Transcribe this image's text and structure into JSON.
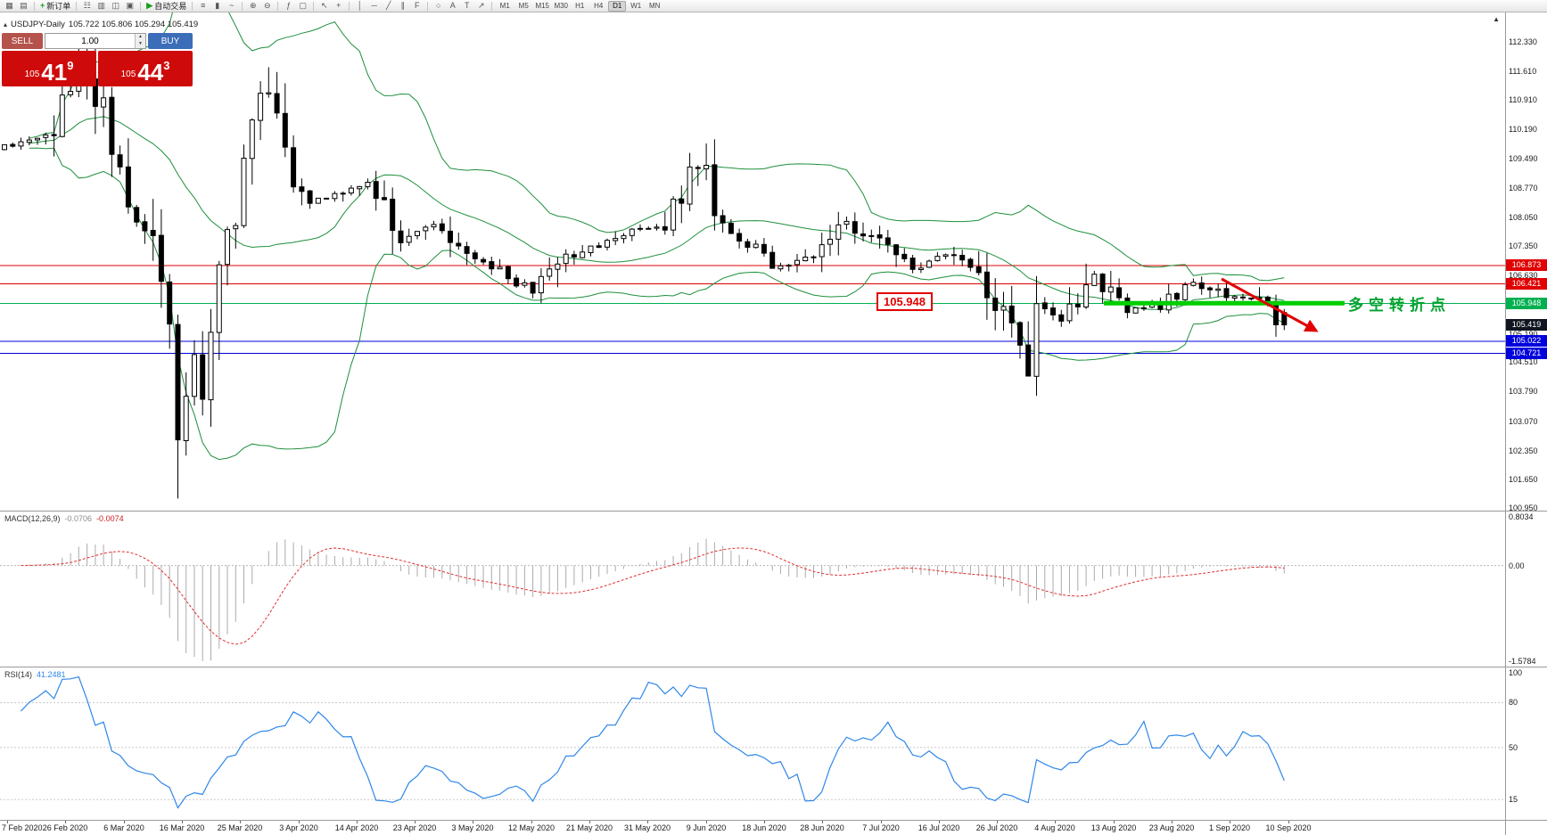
{
  "window": {
    "band_green": "#1e8f3c",
    "object_green": "#00ce00",
    "arrow_red": "#e00000",
    "histogram_gray": "#ababab",
    "macd_signal_red": "#e03030",
    "rsi_blue": "#2f87e8",
    "candle_up_fill": "#ffffff",
    "candle_down_fill": "#000000"
  },
  "toolbar": {
    "icon_groups": [
      {
        "items": [
          {
            "name": "new-chart",
            "glyph": "▦"
          },
          {
            "name": "profiles",
            "glyph": "▤"
          }
        ]
      },
      {
        "button": {
          "name": "new-order",
          "label": "新订单",
          "icon_glyph": "+",
          "icon_color": "#18a018",
          "icon_name": "plus-icon"
        }
      },
      {
        "items": [
          {
            "name": "market-watch",
            "glyph": "☷"
          },
          {
            "name": "data-window",
            "glyph": "▥"
          },
          {
            "name": "navigator",
            "glyph": "◫"
          },
          {
            "name": "terminal",
            "glyph": "▣"
          }
        ]
      },
      {
        "button": {
          "name": "auto-trading",
          "label": "自动交易",
          "icon_glyph": "▶",
          "icon_color": "#18a018",
          "icon_name": "play-icon"
        }
      },
      {
        "items": [
          {
            "name": "bar-chart-mode",
            "glyph": "≡"
          },
          {
            "name": "candlestick-mode",
            "glyph": "▮"
          },
          {
            "name": "line-chart-mode",
            "glyph": "~"
          }
        ]
      },
      {
        "items": [
          {
            "name": "zoom-in",
            "glyph": "⊕"
          },
          {
            "name": "zoom-out",
            "glyph": "⊖"
          }
        ]
      },
      {
        "items": [
          {
            "name": "indicators",
            "glyph": "ƒ"
          },
          {
            "name": "tile-windows",
            "glyph": "▢"
          }
        ]
      },
      {
        "items": [
          {
            "name": "cursor",
            "glyph": "↖"
          },
          {
            "name": "crosshair",
            "glyph": "+"
          }
        ]
      },
      {
        "items": [
          {
            "name": "vertical-line",
            "glyph": "│"
          },
          {
            "name": "horizontal-line",
            "glyph": "─"
          },
          {
            "name": "trendline",
            "glyph": "╱"
          },
          {
            "name": "equidistant-channel",
            "glyph": "∥"
          },
          {
            "name": "fibonacci",
            "glyph": "F"
          }
        ]
      },
      {
        "items": [
          {
            "name": "shapes",
            "glyph": "○"
          },
          {
            "name": "text",
            "glyph": "A"
          },
          {
            "name": "text-label",
            "glyph": "T"
          },
          {
            "name": "arrow-object",
            "glyph": "↗"
          }
        ]
      }
    ],
    "timeframes": {
      "items": [
        "M1",
        "M5",
        "M15",
        "M30",
        "H1",
        "H4",
        "D1",
        "W1",
        "MN"
      ],
      "active": "D1"
    }
  },
  "chart": {
    "header": {
      "collapse_glyph": "▴",
      "symbol": "USDJPY-Daily",
      "ohlc": "105.722 105.806 105.294 105.419"
    },
    "trade_panel": {
      "sell_label": "SELL",
      "buy_label": "BUY",
      "volume": "1.00",
      "bid": {
        "prefix": "105",
        "big": "41",
        "sup": "9"
      },
      "ask": {
        "prefix": "105",
        "big": "44",
        "sup": "3"
      }
    },
    "annotations": {
      "price_label": "105.948",
      "note": "多空转折点"
    },
    "scroll_up_glyph": "▲",
    "price_axis_ticks": [
      "112.330",
      "111.610",
      "110.910",
      "110.190",
      "109.490",
      "108.770",
      "108.050",
      "107.350",
      "106.630",
      "105.910",
      "105.190",
      "104.510",
      "103.790",
      "103.070",
      "102.350",
      "101.650",
      "100.950"
    ],
    "price_flags": [
      {
        "label": "106.873",
        "bg": "#e00000"
      },
      {
        "label": "106.421",
        "bg": "#e00000"
      },
      {
        "label": "105.948",
        "bg": "#00b050"
      },
      {
        "label": "105.419",
        "bg": "#10151f"
      },
      {
        "label": "105.022",
        "bg": "#0000dd"
      },
      {
        "label": "104.721",
        "bg": "#0000dd"
      }
    ]
  },
  "indicators": {
    "macd": {
      "label": "MACD(12,26,9)",
      "value_main": "-0.0706",
      "value_signal": "-0.0074",
      "axis_ticks": [
        "0.8034",
        "0.00",
        "-1.5784"
      ],
      "scale": {
        "min": -1.5784,
        "max": 0.8034
      }
    },
    "rsi": {
      "label": "RSI(14)",
      "value": "41.2481",
      "axis_ticks": [
        "100",
        "80",
        "50",
        "15"
      ],
      "levels": [
        80,
        50,
        15
      ],
      "scale": {
        "min": 5,
        "max": 100
      }
    }
  },
  "time_axis": {
    "dates": [
      "7 Feb 2020",
      "26 Feb 2020",
      "6 Mar 2020",
      "16 Mar 2020",
      "25 Mar 2020",
      "3 Apr 2020",
      "14 Apr 2020",
      "23 Apr 2020",
      "3 May 2020",
      "12 May 2020",
      "21 May 2020",
      "31 May 2020",
      "9 Jun 2020",
      "18 Jun 2020",
      "28 Jun 2020",
      "7 Jul 2020",
      "16 Jul 2020",
      "26 Jul 2020",
      "4 Aug 2020",
      "13 Aug 2020",
      "23 Aug 2020",
      "1 Sep 2020",
      "10 Sep 2020"
    ]
  },
  "chart_data": {
    "type": "candlestick",
    "symbol": "USDJPY",
    "timeframe": "Daily",
    "last_ohlc": {
      "open": 105.722,
      "high": 105.806,
      "low": 105.294,
      "close": 105.419
    },
    "price_axis": {
      "min": 100.95,
      "max": 112.33
    },
    "candle_count": 156,
    "anchors": [
      [
        0,
        109.8
      ],
      [
        5,
        109.95
      ],
      [
        8,
        111.3
      ],
      [
        9,
        111.9
      ],
      [
        12,
        110.6
      ],
      [
        15,
        108.2
      ],
      [
        18,
        107.4
      ],
      [
        20,
        105.4
      ],
      [
        21,
        102.6
      ],
      [
        22,
        103.5
      ],
      [
        23,
        104.6
      ],
      [
        24,
        103.9
      ],
      [
        26,
        106.9
      ],
      [
        28,
        108.0
      ],
      [
        30,
        110.7
      ],
      [
        32,
        111.2
      ],
      [
        34,
        109.8
      ],
      [
        36,
        108.4
      ],
      [
        40,
        108.6
      ],
      [
        44,
        108.9
      ],
      [
        48,
        107.5
      ],
      [
        52,
        107.9
      ],
      [
        56,
        107.1
      ],
      [
        60,
        106.8
      ],
      [
        64,
        106.2
      ],
      [
        68,
        107.1
      ],
      [
        72,
        107.4
      ],
      [
        76,
        107.7
      ],
      [
        80,
        107.9
      ],
      [
        83,
        109.0
      ],
      [
        85,
        109.5
      ],
      [
        86,
        108.0
      ],
      [
        88,
        107.5
      ],
      [
        91,
        107.3
      ],
      [
        94,
        106.8
      ],
      [
        98,
        107.1
      ],
      [
        102,
        107.9
      ],
      [
        106,
        107.4
      ],
      [
        110,
        106.8
      ],
      [
        114,
        107.1
      ],
      [
        118,
        106.7
      ],
      [
        120,
        106.0
      ],
      [
        123,
        104.9
      ],
      [
        124,
        104.5
      ],
      [
        125,
        105.8
      ],
      [
        128,
        105.5
      ],
      [
        132,
        106.6
      ],
      [
        136,
        105.8
      ],
      [
        140,
        105.9
      ],
      [
        144,
        106.5
      ],
      [
        148,
        106.1
      ],
      [
        152,
        106.1
      ],
      [
        155,
        105.419
      ]
    ],
    "overrides": {
      "9": {
        "high": 112.23
      },
      "21": {
        "low": 101.18
      },
      "32": {
        "high": 111.71
      },
      "85": {
        "high": 109.85
      },
      "124": {
        "low": 104.19
      },
      "155": {
        "open": 105.722,
        "high": 105.806,
        "low": 105.294,
        "close": 105.419
      }
    },
    "bollinger": {
      "period": 20,
      "deviation": 2,
      "color": "#1e8f3c"
    },
    "macd": {
      "fast": 12,
      "slow": 26,
      "signal": 9
    },
    "rsi": {
      "period": 14
    },
    "hlines": [
      {
        "price": 106.873,
        "color": "#e00000"
      },
      {
        "price": 106.421,
        "color": "#e00000"
      },
      {
        "price": 105.948,
        "color": "#00b050"
      },
      {
        "price": 105.022,
        "color": "#0000dd"
      },
      {
        "price": 104.721,
        "color": "#0000dd"
      }
    ],
    "current_price": 105.419,
    "trend_segment": {
      "price": 105.948,
      "note": "thick green horizontal object near right edge"
    }
  }
}
